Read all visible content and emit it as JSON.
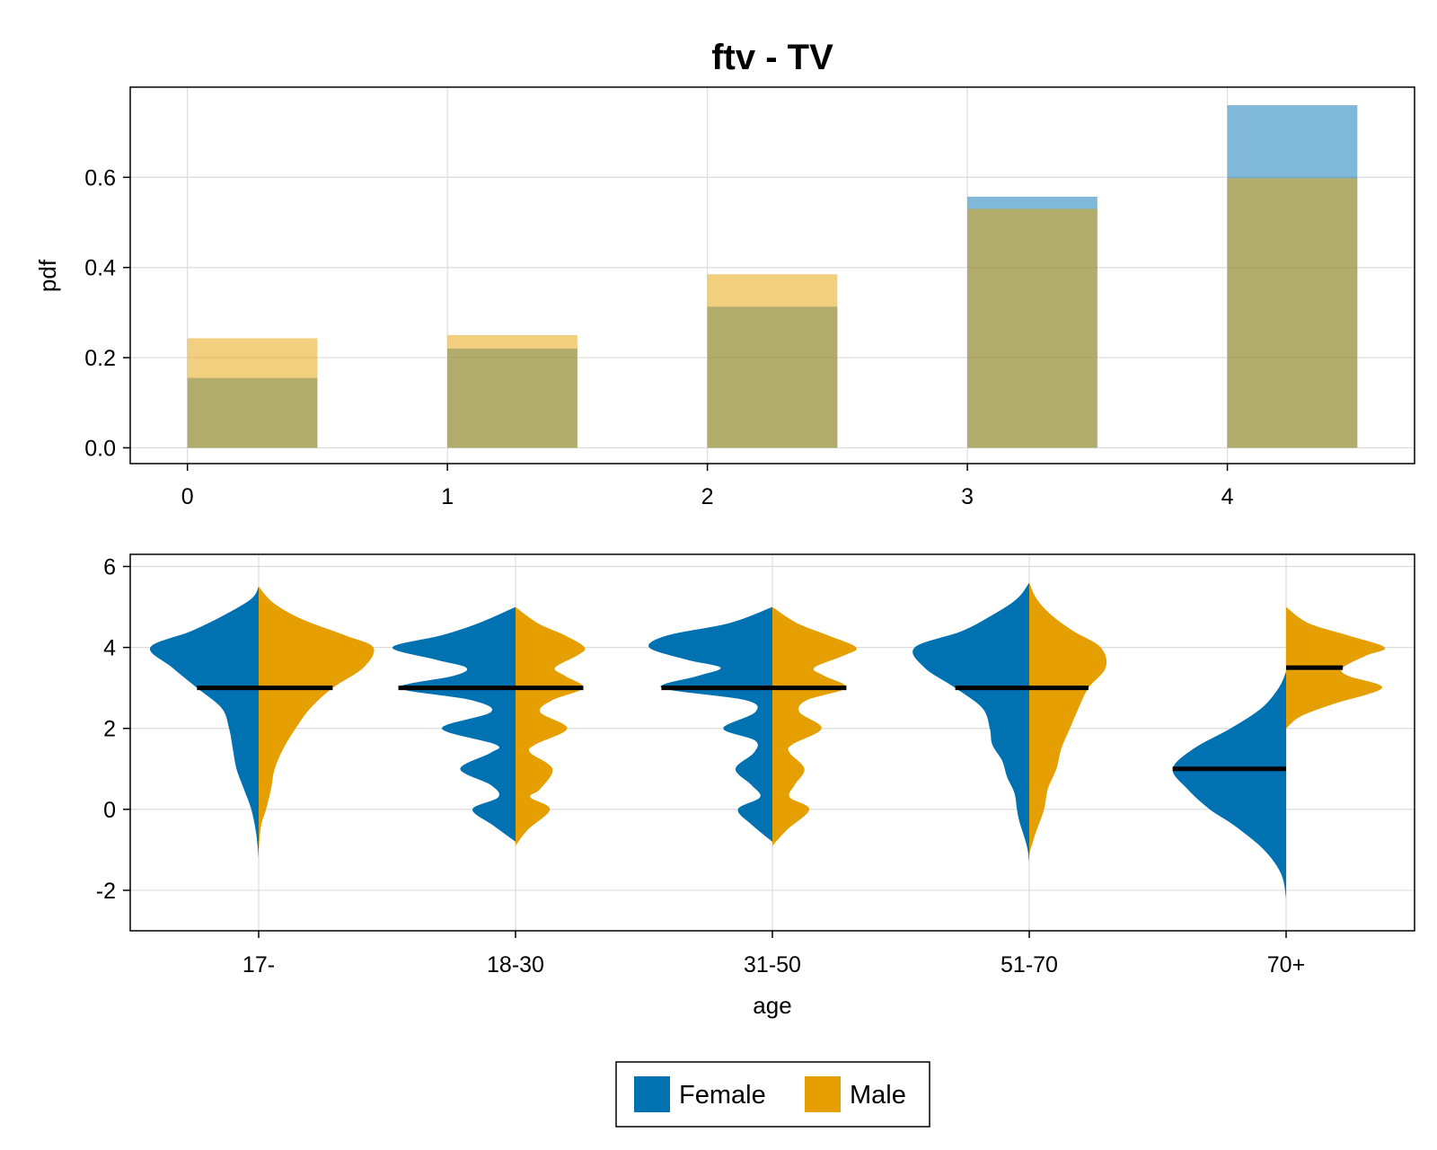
{
  "title": "ftv - TV",
  "colors": {
    "female": "#0072b2",
    "male": "#e69f00"
  },
  "chart_data": [
    {
      "type": "bar",
      "ylabel": "pdf",
      "xlabel": "",
      "ylim": [
        -0.035,
        0.8
      ],
      "xlim": [
        -0.22,
        4.72
      ],
      "bar_width": 0.5,
      "x": [
        0,
        1,
        2,
        3,
        4
      ],
      "x_ticks": [
        "0",
        "1",
        "2",
        "3",
        "4"
      ],
      "y_ticks": [
        0.0,
        0.2,
        0.4,
        0.6
      ],
      "y_tick_labels": [
        "0.0",
        "0.2",
        "0.4",
        "0.6"
      ],
      "grid": true,
      "series": [
        {
          "name": "Female",
          "color": "#0072b2",
          "opacity": 0.5,
          "values": [
            0.155,
            0.22,
            0.313,
            0.557,
            0.76
          ]
        },
        {
          "name": "Male",
          "color": "#e69f00",
          "opacity": 0.5,
          "values": [
            0.243,
            0.25,
            0.385,
            0.53,
            0.598
          ]
        }
      ]
    },
    {
      "type": "violin",
      "xlabel": "age",
      "ylabel": "",
      "ylim": [
        -3,
        6.3
      ],
      "categories": [
        "17-",
        "18-30",
        "31-50",
        "51-70",
        "70+"
      ],
      "y_ticks": [
        -2,
        0,
        2,
        4,
        6
      ],
      "y_tick_labels": [
        "-2",
        "0",
        "2",
        "4",
        "6"
      ],
      "grid": true,
      "series": [
        {
          "name": "Female",
          "side": "left",
          "medians": [
            3,
            3,
            3,
            3,
            1
          ],
          "profiles": [
            [
              [
                -1.2,
                0
              ],
              [
                -0.6,
                0.02
              ],
              [
                0,
                0.06
              ],
              [
                0.5,
                0.12
              ],
              [
                1,
                0.18
              ],
              [
                1.5,
                0.21
              ],
              [
                2,
                0.24
              ],
              [
                2.5,
                0.3
              ],
              [
                3,
                0.5
              ],
              [
                3.5,
                0.7
              ],
              [
                4,
                0.88
              ],
              [
                4.4,
                0.55
              ],
              [
                4.8,
                0.28
              ],
              [
                5.2,
                0.06
              ],
              [
                5.5,
                0
              ]
            ],
            [
              [
                -0.8,
                0
              ],
              [
                -0.4,
                0.18
              ],
              [
                0,
                0.35
              ],
              [
                0.3,
                0.14
              ],
              [
                0.6,
                0.2
              ],
              [
                1,
                0.45
              ],
              [
                1.4,
                0.2
              ],
              [
                1.6,
                0.16
              ],
              [
                2,
                0.6
              ],
              [
                2.4,
                0.2
              ],
              [
                2.7,
                0.36
              ],
              [
                3,
                0.95
              ],
              [
                3.3,
                0.5
              ],
              [
                3.5,
                0.4
              ],
              [
                3.7,
                0.65
              ],
              [
                4,
                1.0
              ],
              [
                4.3,
                0.6
              ],
              [
                4.6,
                0.3
              ],
              [
                5,
                0
              ]
            ],
            [
              [
                -0.8,
                0
              ],
              [
                -0.4,
                0.16
              ],
              [
                0,
                0.28
              ],
              [
                0.3,
                0.1
              ],
              [
                0.6,
                0.17
              ],
              [
                1,
                0.3
              ],
              [
                1.4,
                0.15
              ],
              [
                1.7,
                0.14
              ],
              [
                2,
                0.4
              ],
              [
                2.4,
                0.14
              ],
              [
                2.7,
                0.22
              ],
              [
                3,
                0.9
              ],
              [
                3.3,
                0.6
              ],
              [
                3.5,
                0.42
              ],
              [
                3.7,
                0.7
              ],
              [
                4,
                1.0
              ],
              [
                4.3,
                0.85
              ],
              [
                4.6,
                0.35
              ],
              [
                5,
                0
              ]
            ],
            [
              [
                -1.3,
                0
              ],
              [
                -0.9,
                0.02
              ],
              [
                -0.3,
                0.08
              ],
              [
                0,
                0.1
              ],
              [
                0.4,
                0.12
              ],
              [
                0.8,
                0.18
              ],
              [
                1.2,
                0.22
              ],
              [
                1.6,
                0.3
              ],
              [
                2,
                0.32
              ],
              [
                2.5,
                0.38
              ],
              [
                3,
                0.6
              ],
              [
                3.5,
                0.85
              ],
              [
                4,
                0.93
              ],
              [
                4.4,
                0.55
              ],
              [
                4.8,
                0.3
              ],
              [
                5.2,
                0.1
              ],
              [
                5.6,
                0
              ]
            ],
            [
              [
                -2.2,
                0
              ],
              [
                -1.6,
                0.04
              ],
              [
                -1,
                0.18
              ],
              [
                -0.4,
                0.42
              ],
              [
                0,
                0.62
              ],
              [
                0.5,
                0.8
              ],
              [
                1,
                0.92
              ],
              [
                1.5,
                0.75
              ],
              [
                2,
                0.45
              ],
              [
                2.5,
                0.2
              ],
              [
                3,
                0.06
              ],
              [
                3.4,
                0
              ]
            ]
          ]
        },
        {
          "name": "Male",
          "side": "right",
          "medians": [
            3,
            3,
            3,
            3,
            3.5
          ],
          "profiles": [
            [
              [
                -1,
                0
              ],
              [
                -0.4,
                0.02
              ],
              [
                0,
                0.06
              ],
              [
                0.5,
                0.1
              ],
              [
                1,
                0.13
              ],
              [
                1.5,
                0.2
              ],
              [
                2,
                0.3
              ],
              [
                2.5,
                0.42
              ],
              [
                3,
                0.6
              ],
              [
                3.5,
                0.85
              ],
              [
                4,
                0.93
              ],
              [
                4.3,
                0.7
              ],
              [
                4.7,
                0.35
              ],
              [
                5.1,
                0.12
              ],
              [
                5.5,
                0
              ]
            ],
            [
              [
                -0.9,
                0
              ],
              [
                -0.5,
                0.1
              ],
              [
                0,
                0.28
              ],
              [
                0.3,
                0.12
              ],
              [
                0.5,
                0.2
              ],
              [
                1,
                0.3
              ],
              [
                1.4,
                0.12
              ],
              [
                1.6,
                0.16
              ],
              [
                2,
                0.42
              ],
              [
                2.4,
                0.2
              ],
              [
                2.7,
                0.3
              ],
              [
                3,
                0.55
              ],
              [
                3.3,
                0.4
              ],
              [
                3.5,
                0.32
              ],
              [
                3.8,
                0.5
              ],
              [
                4,
                0.56
              ],
              [
                4.3,
                0.4
              ],
              [
                4.6,
                0.18
              ],
              [
                5,
                0
              ]
            ],
            [
              [
                -0.9,
                0
              ],
              [
                -0.5,
                0.12
              ],
              [
                0,
                0.3
              ],
              [
                0.3,
                0.14
              ],
              [
                0.6,
                0.18
              ],
              [
                1,
                0.26
              ],
              [
                1.4,
                0.14
              ],
              [
                1.6,
                0.16
              ],
              [
                2,
                0.4
              ],
              [
                2.4,
                0.22
              ],
              [
                2.7,
                0.28
              ],
              [
                3,
                0.6
              ],
              [
                3.3,
                0.42
              ],
              [
                3.5,
                0.34
              ],
              [
                3.8,
                0.58
              ],
              [
                4,
                0.68
              ],
              [
                4.3,
                0.45
              ],
              [
                4.6,
                0.2
              ],
              [
                5,
                0
              ]
            ],
            [
              [
                -1.1,
                0
              ],
              [
                -0.6,
                0.05
              ],
              [
                0,
                0.12
              ],
              [
                0.5,
                0.15
              ],
              [
                1,
                0.22
              ],
              [
                1.5,
                0.26
              ],
              [
                2,
                0.33
              ],
              [
                2.5,
                0.4
              ],
              [
                3,
                0.48
              ],
              [
                3.5,
                0.62
              ],
              [
                4,
                0.58
              ],
              [
                4.4,
                0.36
              ],
              [
                4.8,
                0.18
              ],
              [
                5.2,
                0.06
              ],
              [
                5.6,
                0
              ]
            ],
            [
              [
                2,
                0
              ],
              [
                2.3,
                0.12
              ],
              [
                2.6,
                0.38
              ],
              [
                3,
                0.78
              ],
              [
                3.3,
                0.5
              ],
              [
                3.5,
                0.46
              ],
              [
                3.8,
                0.65
              ],
              [
                4,
                0.8
              ],
              [
                4.3,
                0.5
              ],
              [
                4.6,
                0.18
              ],
              [
                5,
                0
              ]
            ]
          ]
        }
      ],
      "legend": {
        "position": "bottom",
        "entries": [
          "Female",
          "Male"
        ]
      }
    }
  ]
}
